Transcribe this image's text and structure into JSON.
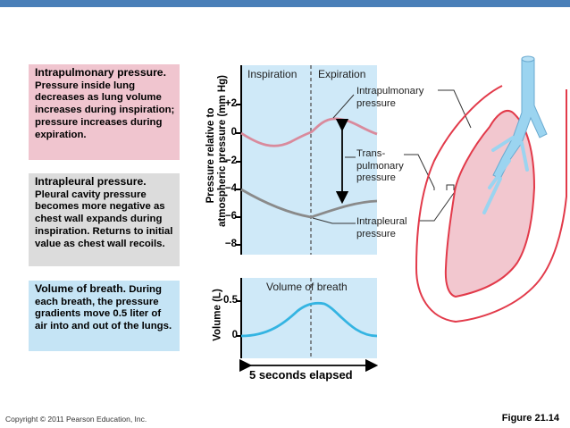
{
  "colors": {
    "topbar": "#4a7fb8",
    "pink_box": "#f0c5cf",
    "gray_box": "#dcdcdc",
    "blue_box": "#c5e4f5",
    "panel": "#cfe9f8",
    "intrapulmonary_curve": "#d98a9c",
    "intrapleural_curve": "#8a8a8a",
    "volume_curve": "#34b4e2",
    "lung_outline": "#e23a4a",
    "lung_fill": "#f2c7cf",
    "airway": "#9bd4f0"
  },
  "boxes": {
    "intrapulmonary": {
      "heading": "Intrapulmonary pressure.",
      "body": "Pressure inside lung decreases as lung volume increases during inspiration; pressure increases during expiration."
    },
    "intrapleural": {
      "heading": "Intrapleural pressure.",
      "body": "Pleural cavity pressure becomes more negative as chest wall expands during inspiration. Returns to initial value as chest wall recoils."
    },
    "volume": {
      "heading": "Volume of breath.",
      "body": "During each breath, the pressure gradients move 0.5 liter of air into and out of the lungs."
    }
  },
  "pressure_panel": {
    "y_axis_line1": "Pressure relative to",
    "y_axis_line2": "atmospheric pressure (mm Hg)",
    "ticks": [
      "+2",
      "0",
      "−2",
      "−4",
      "−6",
      "−8"
    ],
    "phase_inspiration": "Inspiration",
    "phase_expiration": "Expiration",
    "label_intrapulmonary": "Intrapulmonary pressure",
    "label_transpulmonary": "Trans- pulmonary pressure",
    "label_intrapleural": "Intrapleural pressure"
  },
  "volume_panel": {
    "y_axis": "Volume (L)",
    "ticks": [
      "0.5",
      "0"
    ],
    "title": "Volume of breath",
    "time_label": "5 seconds elapsed"
  },
  "footer": {
    "copyright": "Copyright © 2011 Pearson Education, Inc.",
    "figure": "Figure 21.14"
  }
}
